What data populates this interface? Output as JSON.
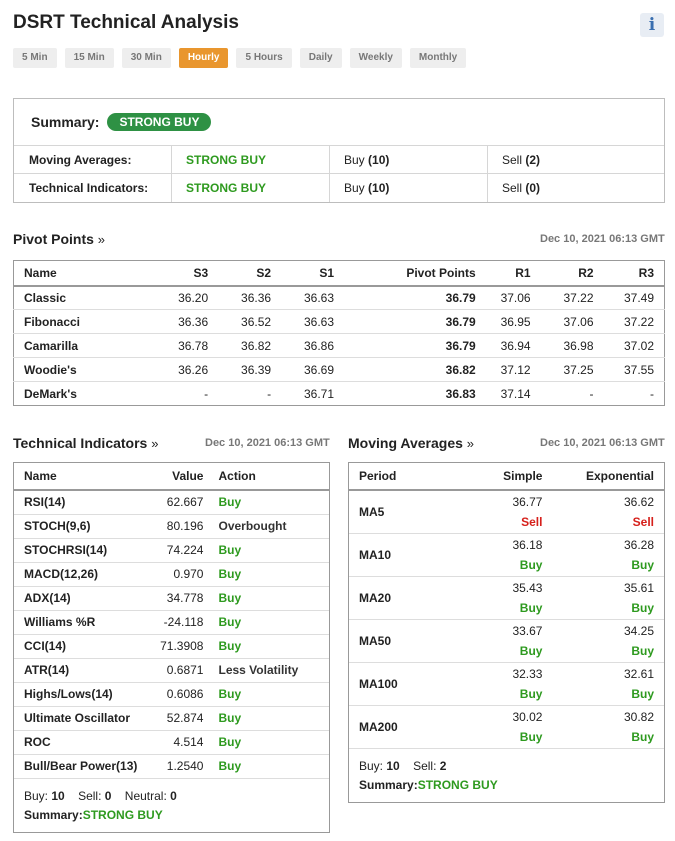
{
  "header": {
    "title": "DSRT Technical Analysis",
    "info_icon": "i"
  },
  "timeframes": [
    "5 Min",
    "15 Min",
    "30 Min",
    "Hourly",
    "5 Hours",
    "Daily",
    "Weekly",
    "Monthly"
  ],
  "active_timeframe": "Hourly",
  "summary": {
    "label": "Summary:",
    "verdict": "STRONG BUY",
    "rows": [
      {
        "name": "Moving Averages:",
        "verdict": "STRONG BUY",
        "buy_label": "Buy",
        "buy": "(10)",
        "sell_label": "Sell",
        "sell": "(2)"
      },
      {
        "name": "Technical Indicators:",
        "verdict": "STRONG BUY",
        "buy_label": "Buy",
        "buy": "(10)",
        "sell_label": "Sell",
        "sell": "(0)"
      }
    ]
  },
  "pivot": {
    "title": "Pivot Points",
    "arrow": "»",
    "timestamp": "Dec 10, 2021 06:13 GMT",
    "columns": [
      "Name",
      "S3",
      "S2",
      "S1",
      "Pivot Points",
      "R1",
      "R2",
      "R3"
    ],
    "rows": [
      [
        "Classic",
        "36.20",
        "36.36",
        "36.63",
        "36.79",
        "37.06",
        "37.22",
        "37.49"
      ],
      [
        "Fibonacci",
        "36.36",
        "36.52",
        "36.63",
        "36.79",
        "36.95",
        "37.06",
        "37.22"
      ],
      [
        "Camarilla",
        "36.78",
        "36.82",
        "36.86",
        "36.79",
        "36.94",
        "36.98",
        "37.02"
      ],
      [
        "Woodie's",
        "36.26",
        "36.39",
        "36.69",
        "36.82",
        "37.12",
        "37.25",
        "37.55"
      ],
      [
        "DeMark's",
        "-",
        "-",
        "36.71",
        "36.83",
        "37.14",
        "-",
        "-"
      ]
    ]
  },
  "tech": {
    "title": "Technical Indicators",
    "arrow": "»",
    "timestamp": "Dec 10, 2021 06:13 GMT",
    "columns": [
      "Name",
      "Value",
      "Action"
    ],
    "rows": [
      {
        "name": "RSI(14)",
        "value": "62.667",
        "action": "Buy",
        "kind": "buy"
      },
      {
        "name": "STOCH(9,6)",
        "value": "80.196",
        "action": "Overbought",
        "kind": "neu"
      },
      {
        "name": "STOCHRSI(14)",
        "value": "74.224",
        "action": "Buy",
        "kind": "buy"
      },
      {
        "name": "MACD(12,26)",
        "value": "0.970",
        "action": "Buy",
        "kind": "buy"
      },
      {
        "name": "ADX(14)",
        "value": "34.778",
        "action": "Buy",
        "kind": "buy"
      },
      {
        "name": "Williams %R",
        "value": "-24.118",
        "action": "Buy",
        "kind": "buy"
      },
      {
        "name": "CCI(14)",
        "value": "71.3908",
        "action": "Buy",
        "kind": "buy"
      },
      {
        "name": "ATR(14)",
        "value": "0.6871",
        "action": "Less Volatility",
        "kind": "neu"
      },
      {
        "name": "Highs/Lows(14)",
        "value": "0.6086",
        "action": "Buy",
        "kind": "buy"
      },
      {
        "name": "Ultimate Oscillator",
        "value": "52.874",
        "action": "Buy",
        "kind": "buy"
      },
      {
        "name": "ROC",
        "value": "4.514",
        "action": "Buy",
        "kind": "buy"
      },
      {
        "name": "Bull/Bear Power(13)",
        "value": "1.2540",
        "action": "Buy",
        "kind": "buy"
      }
    ],
    "footer": {
      "buy_label": "Buy:",
      "buy": "10",
      "sell_label": "Sell:",
      "sell": "0",
      "neutral_label": "Neutral:",
      "neutral": "0",
      "summary_label": "Summary:",
      "summary": "STRONG BUY"
    }
  },
  "ma": {
    "title": "Moving Averages",
    "arrow": "»",
    "timestamp": "Dec 10, 2021 06:13 GMT",
    "columns": [
      "Period",
      "Simple",
      "Exponential"
    ],
    "rows": [
      {
        "period": "MA5",
        "simple": "36.77",
        "simple_action": "Sell",
        "simple_kind": "sell",
        "exp": "36.62",
        "exp_action": "Sell",
        "exp_kind": "sell"
      },
      {
        "period": "MA10",
        "simple": "36.18",
        "simple_action": "Buy",
        "simple_kind": "buy",
        "exp": "36.28",
        "exp_action": "Buy",
        "exp_kind": "buy"
      },
      {
        "period": "MA20",
        "simple": "35.43",
        "simple_action": "Buy",
        "simple_kind": "buy",
        "exp": "35.61",
        "exp_action": "Buy",
        "exp_kind": "buy"
      },
      {
        "period": "MA50",
        "simple": "33.67",
        "simple_action": "Buy",
        "simple_kind": "buy",
        "exp": "34.25",
        "exp_action": "Buy",
        "exp_kind": "buy"
      },
      {
        "period": "MA100",
        "simple": "32.33",
        "simple_action": "Buy",
        "simple_kind": "buy",
        "exp": "32.61",
        "exp_action": "Buy",
        "exp_kind": "buy"
      },
      {
        "period": "MA200",
        "simple": "30.02",
        "simple_action": "Buy",
        "simple_kind": "buy",
        "exp": "30.82",
        "exp_action": "Buy",
        "exp_kind": "buy"
      }
    ],
    "footer": {
      "buy_label": "Buy:",
      "buy": "10",
      "sell_label": "Sell:",
      "sell": "2",
      "summary_label": "Summary:",
      "summary": "STRONG BUY"
    }
  }
}
